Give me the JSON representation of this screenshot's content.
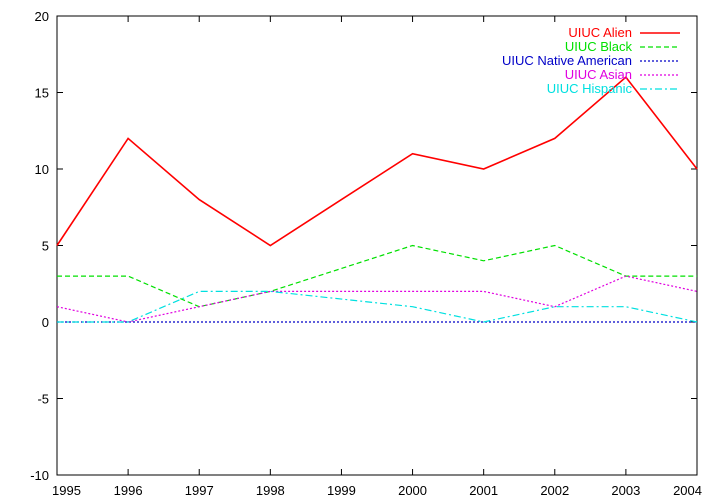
{
  "chart_data": {
    "type": "line",
    "x": [
      1995,
      1996,
      1997,
      1998,
      1999,
      2000,
      2001,
      2002,
      2003,
      2004
    ],
    "xlim": [
      1995,
      2004
    ],
    "ylim": [
      -10,
      20
    ],
    "xticks": [
      "1995",
      "1996",
      "1997",
      "1998",
      "1999",
      "2000",
      "2001",
      "2002",
      "2003",
      "2004"
    ],
    "yticks": [
      "-10",
      "-5",
      "0",
      "5",
      "10",
      "15",
      "20"
    ],
    "grid": false,
    "legend_position": "top-right",
    "series": [
      {
        "name": "UIUC Alien",
        "color": "#ff0000",
        "dash": "solid",
        "values": [
          5,
          12,
          8,
          5,
          8,
          11,
          10,
          12,
          16,
          10
        ]
      },
      {
        "name": "UIUC Black",
        "color": "#00e000",
        "dash": "dashed",
        "values": [
          3,
          3,
          1,
          2,
          3.5,
          5,
          4,
          5,
          3,
          3
        ]
      },
      {
        "name": "UIUC Native American",
        "color": "#0000c8",
        "dash": "dotted",
        "values": [
          0,
          0,
          0,
          0,
          0,
          0,
          0,
          0,
          0,
          0
        ]
      },
      {
        "name": "UIUC Asian",
        "color": "#e000e0",
        "dash": "dotted",
        "values": [
          1,
          0,
          1,
          2,
          2,
          2,
          2,
          1,
          3,
          2
        ]
      },
      {
        "name": "UIUC Hispanic",
        "color": "#00e0e0",
        "dash": "dashdot",
        "values": [
          0,
          0,
          2,
          2,
          1.5,
          1,
          0,
          1,
          1,
          0
        ]
      }
    ]
  }
}
